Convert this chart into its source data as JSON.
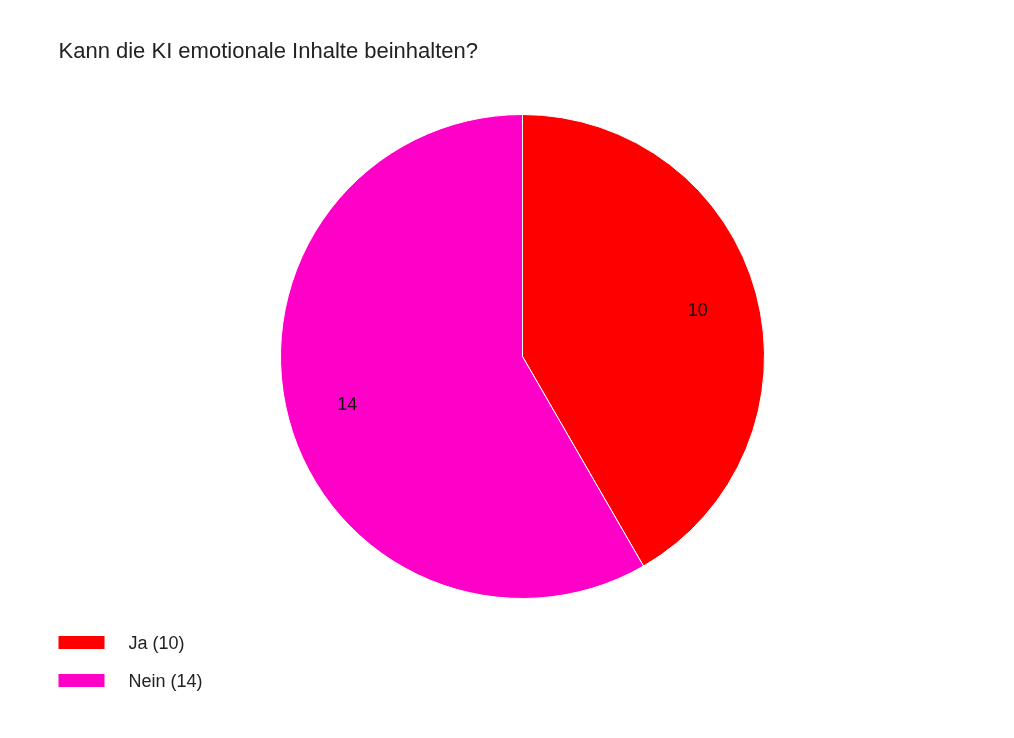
{
  "chart_data": {
    "type": "pie",
    "title": "Kann die KI emotionale Inhalte beinhalten?",
    "categories": [
      "Ja (10)",
      "Nein (14)"
    ],
    "values": [
      10,
      14
    ],
    "colors": [
      "#ff0000",
      "#ff00c8"
    ],
    "data_labels": true,
    "legend": "bottom left"
  }
}
